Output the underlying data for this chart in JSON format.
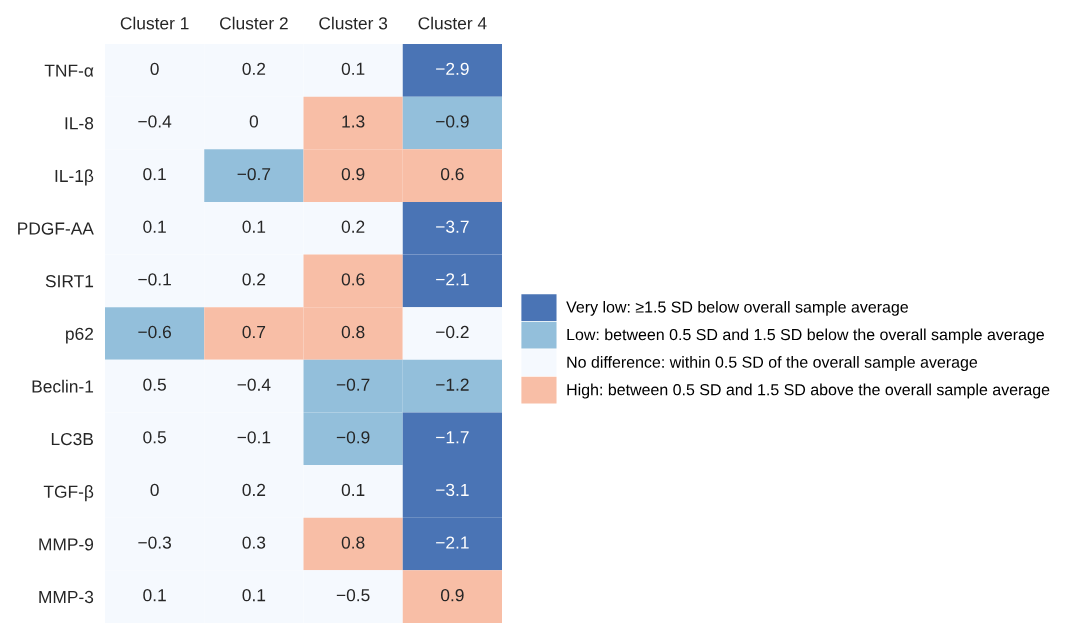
{
  "chart_data": {
    "type": "heatmap",
    "categories": [
      "Cluster 1",
      "Cluster 2",
      "Cluster 3",
      "Cluster 4"
    ],
    "y_categories": [
      "TNF-α",
      "IL-8",
      "IL-1β",
      "PDGF-AA",
      "SIRT1",
      "p62",
      "Beclin-1",
      "LC3B",
      "TGF-β",
      "MMP-9",
      "MMP-3"
    ],
    "cells": [
      [
        0,
        0.2,
        0.1,
        -2.9
      ],
      [
        -0.4,
        0,
        1.3,
        -0.9
      ],
      [
        0.1,
        -0.7,
        0.9,
        0.6
      ],
      [
        0.1,
        0.1,
        0.2,
        -3.7
      ],
      [
        -0.1,
        0.2,
        0.6,
        -2.1
      ],
      [
        -0.6,
        0.7,
        0.8,
        -0.2
      ],
      [
        0.5,
        -0.4,
        -0.7,
        -1.2
      ],
      [
        0.5,
        -0.1,
        -0.9,
        -1.7
      ],
      [
        0,
        0.2,
        0.1,
        -3.1
      ],
      [
        -0.3,
        0.3,
        0.8,
        -2.1
      ],
      [
        0.1,
        0.1,
        -0.5,
        0.9
      ]
    ],
    "colors": [
      [
        "#f5f9fe",
        "#f5f9fe",
        "#f5f9fe",
        "#4a74b5"
      ],
      [
        "#f5f9fe",
        "#f5f9fe",
        "#f8bea6",
        "#93bfdb"
      ],
      [
        "#f5f9fe",
        "#93bfdb",
        "#f8bea6",
        "#f8bea6"
      ],
      [
        "#f5f9fe",
        "#f5f9fe",
        "#f5f9fe",
        "#4a74b5"
      ],
      [
        "#f5f9fe",
        "#f5f9fe",
        "#f8bea6",
        "#4a74b5"
      ],
      [
        "#93bfdb",
        "#f8bea6",
        "#f8bea6",
        "#f5f9fe"
      ],
      [
        "#f5f9fe",
        "#f5f9fe",
        "#93bfdb",
        "#93bfdb"
      ],
      [
        "#f5f9fe",
        "#f5f9fe",
        "#93bfdb",
        "#4a74b5"
      ],
      [
        "#f5f9fe",
        "#f5f9fe",
        "#f5f9fe",
        "#4a74b5"
      ],
      [
        "#f5f9fe",
        "#f5f9fe",
        "#f8bea6",
        "#4a74b5"
      ],
      [
        "#f5f9fe",
        "#f5f9fe",
        "#f5f9fe",
        "#f8bea6"
      ]
    ],
    "series": [
      {
        "name": "Very low: ≥1.5 SD below overall sample average",
        "color": "#4a74b5",
        "values": [
          null,
          null,
          null,
          null
        ]
      },
      {
        "name": "Low: between 0.5 SD and 1.5 SD below the overall sample average",
        "color": "#93bfdb",
        "values": [
          null,
          null,
          null,
          null
        ]
      },
      {
        "name": "No difference: within 0.5 SD of the overall sample average",
        "color": "#f5f9fe",
        "values": [
          null,
          null,
          null,
          null
        ]
      },
      {
        "name": "High: between 0.5 SD and 1.5 SD above the overall sample average",
        "color": "#f8bea6",
        "values": [
          null,
          null,
          null,
          null
        ]
      }
    ],
    "data_labels": true,
    "legend": "right"
  }
}
